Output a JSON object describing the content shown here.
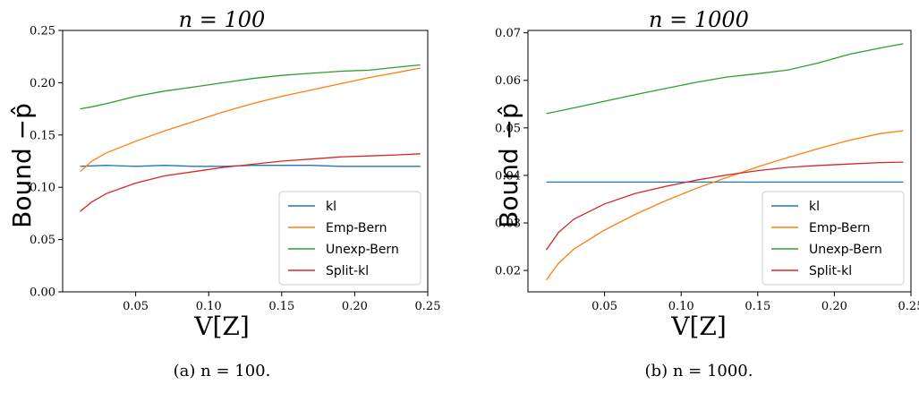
{
  "chart_data": [
    {
      "type": "line",
      "title": "n = 100",
      "xlabel": "V[Z]",
      "ylabel": "Bound −p̂",
      "xlim": [
        0.0,
        0.25
      ],
      "ylim": [
        0.0,
        0.25
      ],
      "xticks": [
        "0.05",
        "0.10",
        "0.15",
        "0.20",
        "0.25"
      ],
      "yticks": [
        "0.00",
        "0.05",
        "0.10",
        "0.15",
        "0.20",
        "0.25"
      ],
      "grid": false,
      "legend_position": "lower-right",
      "caption": "(a) n = 100.",
      "series": [
        {
          "name": "kl",
          "color": "#1f77b4",
          "x": [
            0.012,
            0.03,
            0.05,
            0.07,
            0.09,
            0.11,
            0.13,
            0.15,
            0.17,
            0.19,
            0.21,
            0.23,
            0.245
          ],
          "y": [
            0.12,
            0.121,
            0.12,
            0.121,
            0.12,
            0.12,
            0.121,
            0.121,
            0.121,
            0.12,
            0.12,
            0.12,
            0.12
          ]
        },
        {
          "name": "Emp-Bern",
          "color": "#ff7f0e",
          "x": [
            0.012,
            0.02,
            0.03,
            0.05,
            0.07,
            0.09,
            0.11,
            0.13,
            0.15,
            0.17,
            0.19,
            0.21,
            0.23,
            0.245
          ],
          "y": [
            0.115,
            0.125,
            0.133,
            0.144,
            0.154,
            0.163,
            0.172,
            0.18,
            0.187,
            0.193,
            0.199,
            0.205,
            0.21,
            0.214
          ]
        },
        {
          "name": "Unexp-Bern",
          "color": "#2ca02c",
          "x": [
            0.012,
            0.02,
            0.03,
            0.05,
            0.07,
            0.09,
            0.11,
            0.13,
            0.15,
            0.17,
            0.19,
            0.21,
            0.23,
            0.245
          ],
          "y": [
            0.175,
            0.177,
            0.18,
            0.187,
            0.192,
            0.196,
            0.2,
            0.204,
            0.207,
            0.209,
            0.211,
            0.212,
            0.215,
            0.217
          ]
        },
        {
          "name": "Split-kl",
          "color": "#d62728",
          "x": [
            0.012,
            0.02,
            0.03,
            0.05,
            0.07,
            0.09,
            0.11,
            0.13,
            0.15,
            0.17,
            0.19,
            0.21,
            0.23,
            0.245
          ],
          "y": [
            0.077,
            0.086,
            0.094,
            0.104,
            0.111,
            0.115,
            0.119,
            0.122,
            0.125,
            0.127,
            0.129,
            0.13,
            0.131,
            0.132
          ]
        }
      ]
    },
    {
      "type": "line",
      "title": "n = 1000",
      "xlabel": "V[Z]",
      "ylabel": "Bound −p̂",
      "xlim": [
        0.0,
        0.25
      ],
      "ylim": [
        0.0155,
        0.0705
      ],
      "xticks": [
        "0.05",
        "0.10",
        "0.15",
        "0.20",
        "0.25"
      ],
      "yticks": [
        "0.02",
        "0.03",
        "0.04",
        "0.05",
        "0.06",
        "0.07"
      ],
      "grid": false,
      "legend_position": "lower-right",
      "caption": "(b) n = 1000.",
      "series": [
        {
          "name": "kl",
          "color": "#1f77b4",
          "x": [
            0.012,
            0.05,
            0.1,
            0.15,
            0.2,
            0.245
          ],
          "y": [
            0.0386,
            0.0386,
            0.0386,
            0.0386,
            0.0386,
            0.0386
          ]
        },
        {
          "name": "Emp-Bern",
          "color": "#ff7f0e",
          "x": [
            0.012,
            0.02,
            0.03,
            0.05,
            0.07,
            0.09,
            0.11,
            0.13,
            0.15,
            0.17,
            0.19,
            0.21,
            0.23,
            0.245
          ],
          "y": [
            0.018,
            0.0215,
            0.0245,
            0.0285,
            0.0318,
            0.0347,
            0.0373,
            0.0396,
            0.0418,
            0.0438,
            0.0457,
            0.0474,
            0.0488,
            0.0494
          ]
        },
        {
          "name": "Unexp-Bern",
          "color": "#2ca02c",
          "x": [
            0.012,
            0.03,
            0.05,
            0.07,
            0.09,
            0.11,
            0.13,
            0.15,
            0.17,
            0.19,
            0.21,
            0.23,
            0.245
          ],
          "y": [
            0.053,
            0.0542,
            0.0556,
            0.057,
            0.0583,
            0.0596,
            0.0607,
            0.0614,
            0.0622,
            0.0637,
            0.0655,
            0.0668,
            0.0677
          ]
        },
        {
          "name": "Split-kl",
          "color": "#d62728",
          "x": [
            0.012,
            0.02,
            0.03,
            0.05,
            0.07,
            0.09,
            0.11,
            0.13,
            0.15,
            0.17,
            0.19,
            0.21,
            0.23,
            0.245
          ],
          "y": [
            0.0243,
            0.028,
            0.0308,
            0.034,
            0.0362,
            0.0377,
            0.039,
            0.0401,
            0.041,
            0.0417,
            0.0421,
            0.0424,
            0.0427,
            0.0428
          ]
        }
      ]
    }
  ]
}
